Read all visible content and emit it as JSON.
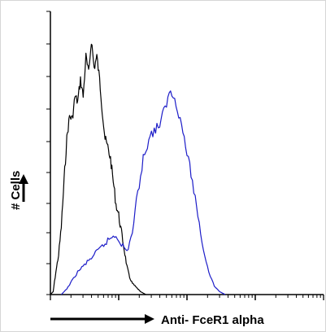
{
  "chart_data": {
    "type": "line",
    "title": "",
    "xlabel": "Anti- FceR1 alpha",
    "ylabel": "# Cells",
    "xlim": [
      0,
      100
    ],
    "ylim": [
      0,
      100
    ],
    "grid": false,
    "legend": "none",
    "series": [
      {
        "color": "#000000",
        "x": [
          0,
          1,
          2,
          3,
          4,
          5,
          6,
          7,
          8,
          9,
          10,
          11,
          12,
          13,
          14,
          15,
          16,
          17,
          18,
          19,
          20,
          21,
          22,
          23,
          24,
          25,
          26,
          27,
          28,
          29,
          30,
          31,
          32,
          33,
          34,
          35
        ],
        "y": [
          0,
          1,
          8,
          14,
          24,
          40,
          55,
          63,
          62,
          70,
          68,
          76,
          70,
          84,
          78,
          90,
          80,
          84,
          76,
          65,
          55,
          52,
          48,
          40,
          32,
          28,
          22,
          16,
          10,
          6,
          4,
          3,
          2,
          1,
          0.5,
          0
        ]
      },
      {
        "color": "#1c1cc8",
        "x": [
          4,
          6,
          8,
          10,
          12,
          14,
          16,
          18,
          20,
          22,
          24,
          26,
          28,
          30,
          32,
          34,
          36,
          38,
          40,
          42,
          44,
          46,
          48,
          50,
          52,
          54,
          56,
          58,
          60,
          62,
          64
        ],
        "y": [
          0,
          2,
          5,
          8,
          10,
          12,
          14,
          16,
          18,
          20,
          21,
          18,
          15,
          22,
          36,
          48,
          55,
          58,
          60,
          66,
          72,
          68,
          60,
          50,
          40,
          28,
          16,
          8,
          3,
          1,
          0
        ]
      }
    ]
  }
}
